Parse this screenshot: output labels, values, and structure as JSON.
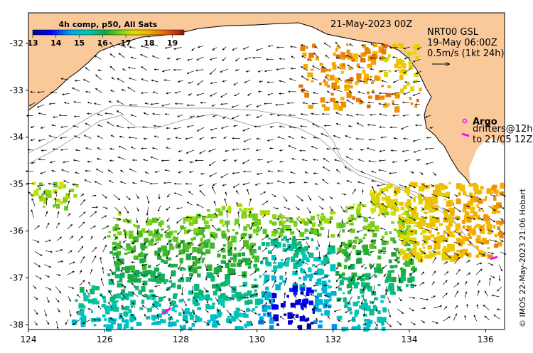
{
  "map": {
    "date_label": "21-May-2023 00Z",
    "product_lines": [
      "NRT00 GSL",
      "19-May 06:00Z",
      "0.5m/s (1kt 24h)"
    ],
    "colorbar": {
      "title": "4h comp, p50, All Sats",
      "ticks": [
        "13",
        "14",
        "15",
        "16",
        "17",
        "18",
        "19"
      ],
      "range": [
        13,
        19.5
      ]
    },
    "argo_label": "Argo",
    "drifter_lines": [
      "drifters@12h",
      "to 21/05 12Z"
    ],
    "credit": "© IMOS 22-May-2023 21:06 Hobart",
    "axes": {
      "lon_ticks": [
        "124",
        "126",
        "128",
        "130",
        "132",
        "134",
        "136"
      ],
      "lat_ticks": [
        "-32",
        "-33",
        "-34",
        "-35",
        "-36",
        "-37",
        "-38"
      ],
      "lon_range": [
        124,
        136.5
      ],
      "lat_range": [
        -38.1,
        -31.35
      ]
    },
    "colors": {
      "land": "#f9c99a",
      "coast": "#000000",
      "bathymetry": "#a8a8a8",
      "drifter": "#ff00ff"
    }
  }
}
